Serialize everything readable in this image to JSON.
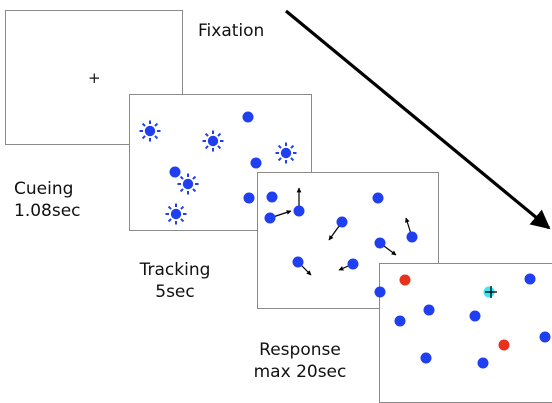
{
  "stages": [
    {
      "id": "fixation",
      "lines": [
        "Fixation",
        ""
      ]
    },
    {
      "id": "cueing",
      "lines": [
        "Cueing",
        "1.08sec"
      ]
    },
    {
      "id": "tracking",
      "lines": [
        "Tracking",
        "5sec"
      ]
    },
    {
      "id": "response",
      "lines": [
        "Response",
        "max 20sec"
      ]
    }
  ],
  "colors": {
    "target": "#1f3ff0",
    "cued_glow": "#1f3ff0",
    "response_red": "#e8321c",
    "response_cyan": "#3ee6f0",
    "arrow": "#000000",
    "panel_border": "#8a8a8a"
  },
  "icons": {
    "fixation_cross": "plus",
    "cue_marker": "sunburst",
    "motion_vector": "arrow",
    "time_axis": "arrow"
  }
}
